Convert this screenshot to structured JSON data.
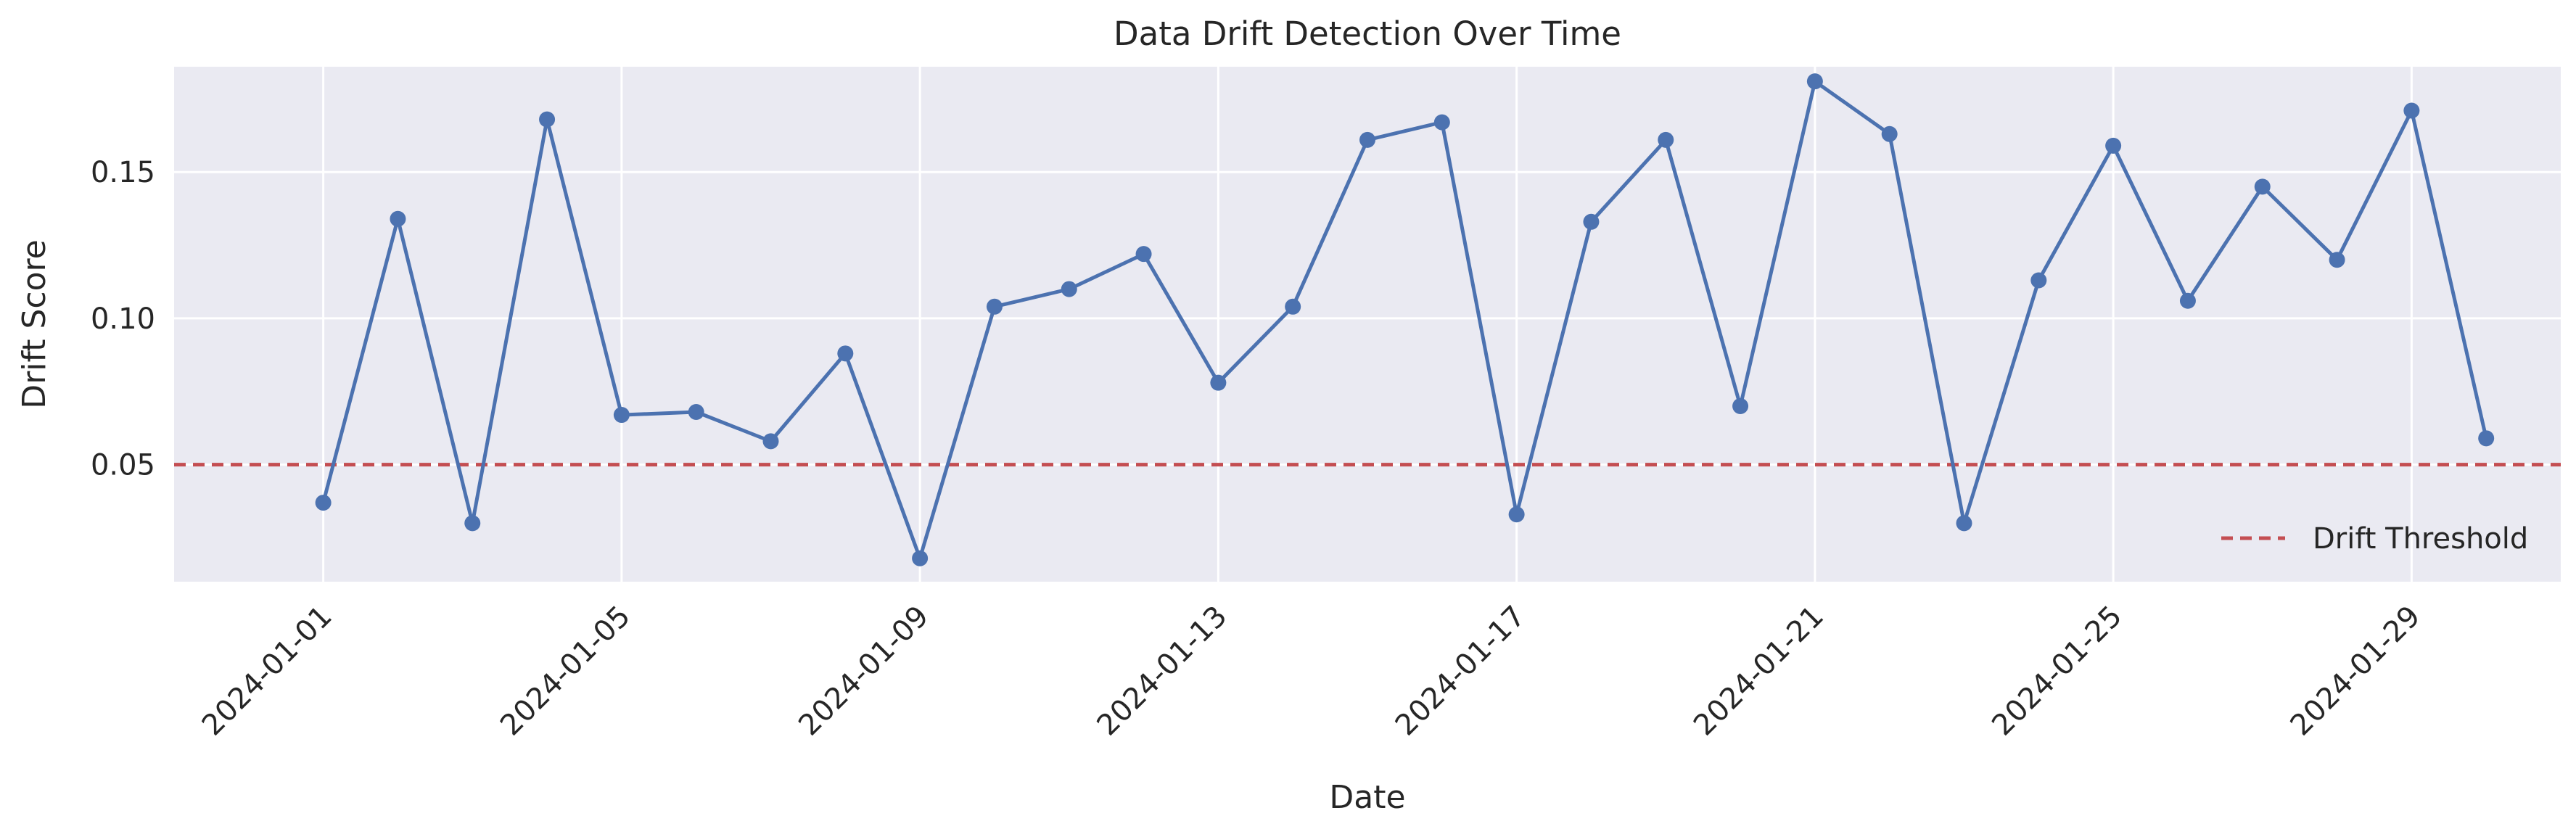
{
  "chart_data": {
    "type": "line",
    "title": "Data Drift Detection Over Time",
    "xlabel": "Date",
    "ylabel": "Drift Score",
    "x_ticks": [
      "2024-01-01",
      "2024-01-05",
      "2024-01-09",
      "2024-01-13",
      "2024-01-17",
      "2024-01-21",
      "2024-01-25",
      "2024-01-29"
    ],
    "y_ticks": [
      "0.05",
      "0.10",
      "0.15"
    ],
    "ylim": [
      0.01,
      0.186
    ],
    "xlim": [
      "2023-12-30",
      "2024-01-31"
    ],
    "grid": true,
    "legend": {
      "position": "lower-right",
      "entries": [
        "Drift Threshold"
      ]
    },
    "series": [
      {
        "name": "",
        "color": "#4c72b0",
        "marker": "circle",
        "x": [
          "2024-01-01",
          "2024-01-02",
          "2024-01-03",
          "2024-01-04",
          "2024-01-05",
          "2024-01-06",
          "2024-01-07",
          "2024-01-08",
          "2024-01-09",
          "2024-01-10",
          "2024-01-11",
          "2024-01-12",
          "2024-01-13",
          "2024-01-14",
          "2024-01-15",
          "2024-01-16",
          "2024-01-17",
          "2024-01-18",
          "2024-01-19",
          "2024-01-20",
          "2024-01-21",
          "2024-01-22",
          "2024-01-23",
          "2024-01-24",
          "2024-01-25",
          "2024-01-26",
          "2024-01-27",
          "2024-01-28",
          "2024-01-29",
          "2024-01-30"
        ],
        "values": [
          0.037,
          0.134,
          0.03,
          0.168,
          0.067,
          0.068,
          0.058,
          0.088,
          0.018,
          0.104,
          0.11,
          0.122,
          0.078,
          0.104,
          0.161,
          0.167,
          0.033,
          0.133,
          0.161,
          0.07,
          0.181,
          0.163,
          0.03,
          0.113,
          0.159,
          0.106,
          0.145,
          0.12,
          0.171,
          0.059
        ]
      }
    ],
    "threshold": {
      "name": "Drift Threshold",
      "value": 0.05,
      "color": "#c44e52",
      "style": "dashed"
    },
    "colors": {
      "plot_background": "#eaeaf2",
      "grid": "#ffffff",
      "line": "#4c72b0",
      "threshold": "#c44e52"
    }
  }
}
